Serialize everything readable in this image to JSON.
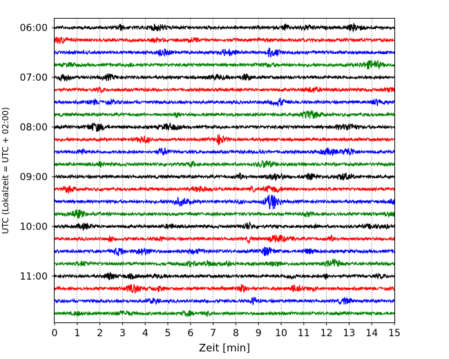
{
  "chart_data": {
    "type": "line",
    "title": "",
    "xlabel": "Zeit  [min]",
    "ylabel": "UTC (Lokalzeit = UTC + 02:00)",
    "xlim": [
      0,
      15
    ],
    "x_ticks": [
      0,
      1,
      2,
      3,
      4,
      5,
      6,
      7,
      8,
      9,
      10,
      11,
      12,
      13,
      14,
      15
    ],
    "x_tick_labels": [
      "0",
      "1",
      "2",
      "3",
      "4",
      "5",
      "6",
      "7",
      "8",
      "9",
      "10",
      "11",
      "12",
      "13",
      "14",
      "15"
    ],
    "y_tick_labels": [
      "06:00",
      "07:00",
      "08:00",
      "09:00",
      "10:00",
      "11:00"
    ],
    "y_tick_rows": [
      0,
      4,
      8,
      12,
      16,
      20
    ],
    "row_interval_minutes": 15,
    "row_start": "06:00",
    "row_count": 24,
    "row_color_cycle": [
      "#000000",
      "#ff0000",
      "#0000ff",
      "#008000"
    ],
    "grid": {
      "x": true,
      "style": "dotted"
    },
    "legend": "none",
    "series_description": "seismogram helicorder traces, one per 15-minute row"
  }
}
